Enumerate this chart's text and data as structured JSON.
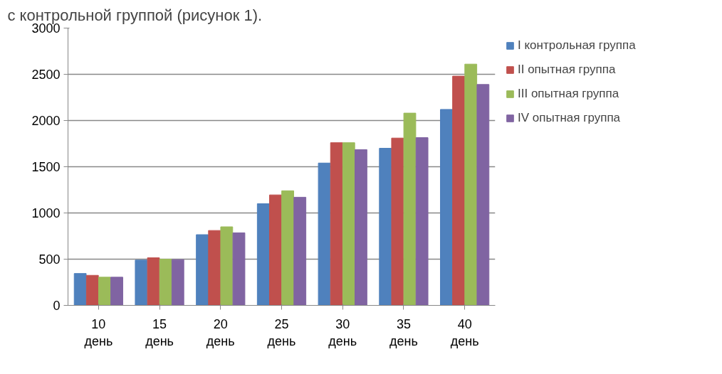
{
  "chart_data": {
    "type": "bar",
    "annotations": [
      "с контрольной группой (рисунок 1)."
    ],
    "categories": [
      "10\nдень",
      "15\nдень",
      "20\nдень",
      "25\nдень",
      "30\nдень",
      "35\nдень",
      "40\nдень"
    ],
    "series": [
      {
        "name": "I контрольная группа",
        "color": "#4f81bd",
        "values": [
          345,
          490,
          765,
          1100,
          1540,
          1700,
          2120
        ]
      },
      {
        "name": "II опытная группа",
        "color": "#c0504d",
        "values": [
          325,
          515,
          810,
          1195,
          1760,
          1810,
          2480
        ]
      },
      {
        "name": "III опытная группа",
        "color": "#9bbb59",
        "values": [
          305,
          500,
          850,
          1240,
          1760,
          2080,
          2610
        ]
      },
      {
        "name": "IV опытная группа",
        "color": "#8064a2",
        "values": [
          305,
          495,
          785,
          1170,
          1685,
          1815,
          2390
        ]
      }
    ],
    "ylim": [
      0,
      3000
    ],
    "yticks": [
      0,
      500,
      1000,
      1500,
      2000,
      2500,
      3000
    ],
    "grid": "y",
    "legend": "right"
  }
}
